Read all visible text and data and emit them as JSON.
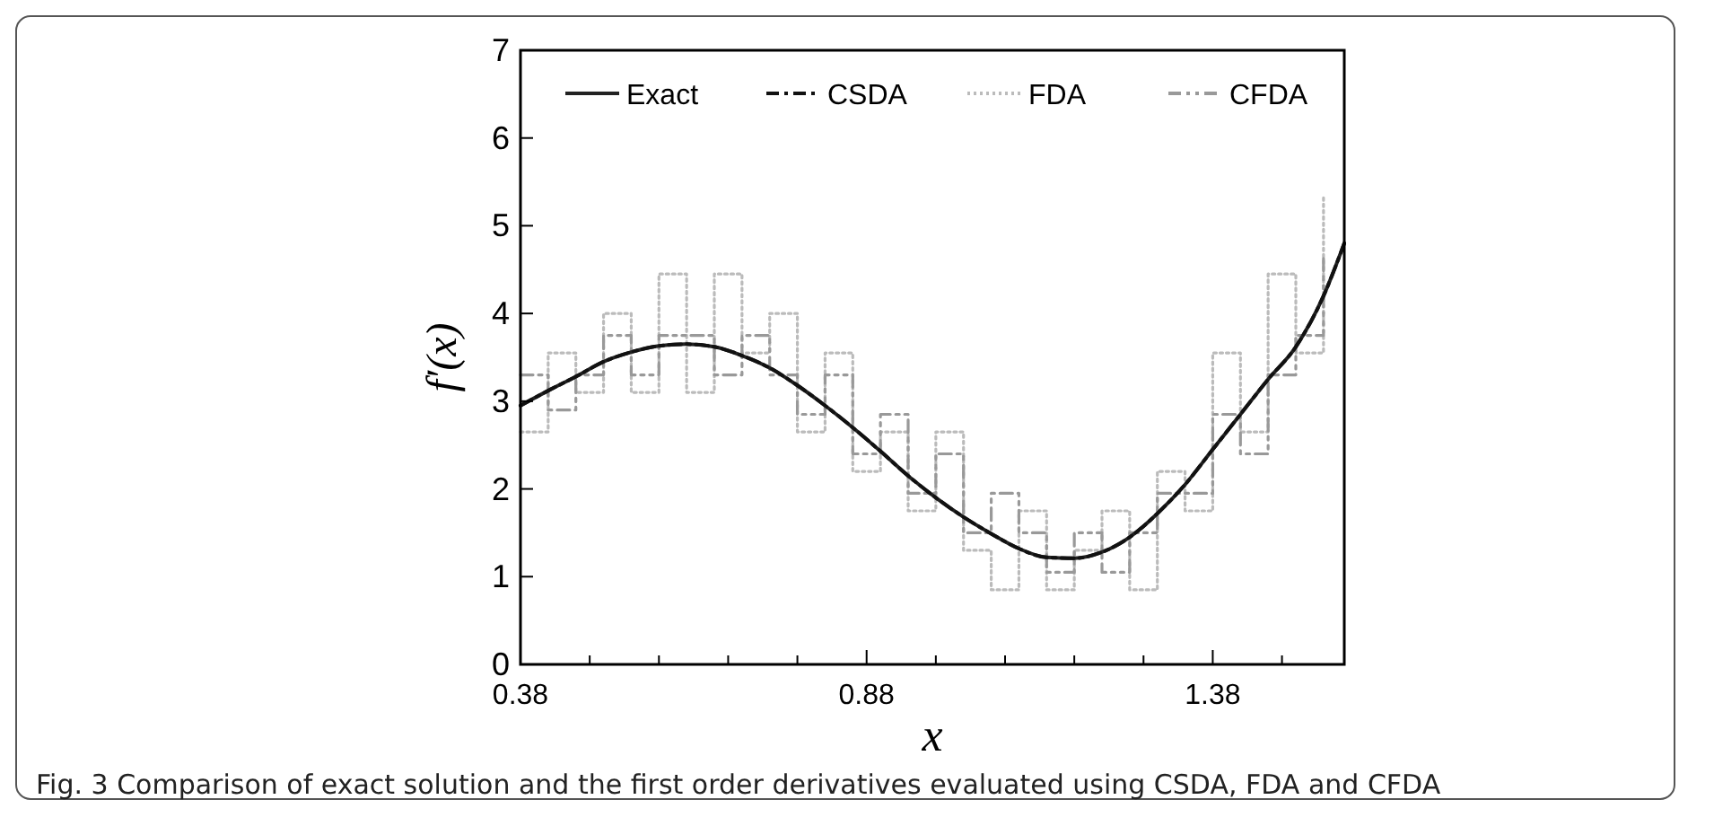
{
  "chart_data": {
    "type": "line",
    "xlabel": "x",
    "ylabel": "f′(x)",
    "annotations": [
      "Fig. 3  Comparison of exact solution and the first order derivatives evaluated using CSDA, FDA and CFDA"
    ],
    "x": [
      0.38,
      0.42,
      0.46,
      0.5,
      0.54,
      0.58,
      0.62,
      0.66,
      0.7,
      0.74,
      0.78,
      0.82,
      0.86,
      0.9,
      0.94,
      0.98,
      1.02,
      1.06,
      1.1,
      1.14,
      1.18,
      1.22,
      1.26,
      1.3,
      1.34,
      1.38,
      1.42,
      1.46,
      1.5,
      1.54,
      1.57
    ],
    "series": [
      {
        "name": "Exact",
        "color": "#222222",
        "line_style": "solid",
        "values": [
          2.95,
          3.12,
          3.28,
          3.45,
          3.56,
          3.63,
          3.65,
          3.62,
          3.52,
          3.38,
          3.18,
          2.95,
          2.7,
          2.43,
          2.15,
          1.9,
          1.68,
          1.49,
          1.32,
          1.22,
          1.21,
          1.28,
          1.45,
          1.72,
          2.05,
          2.45,
          2.85,
          3.25,
          3.62,
          4.2,
          4.8
        ]
      },
      {
        "name": "CSDA",
        "color": "#111111",
        "line_style": "dashdot",
        "values": [
          2.95,
          3.12,
          3.28,
          3.45,
          3.56,
          3.63,
          3.65,
          3.62,
          3.52,
          3.38,
          3.18,
          2.95,
          2.7,
          2.43,
          2.15,
          1.9,
          1.68,
          1.49,
          1.32,
          1.22,
          1.21,
          1.28,
          1.45,
          1.72,
          2.05,
          2.45,
          2.85,
          3.25,
          3.62,
          4.2,
          4.8
        ]
      },
      {
        "name": "FDA",
        "type": "step",
        "color": "#bbbbbb",
        "line_style": "dotted",
        "values": [
          2.65,
          3.55,
          3.1,
          4.0,
          3.1,
          4.45,
          3.1,
          4.45,
          3.55,
          4.0,
          2.65,
          3.55,
          2.2,
          2.65,
          1.75,
          2.65,
          1.3,
          0.85,
          1.75,
          0.85,
          1.3,
          1.75,
          0.85,
          2.2,
          1.75,
          3.55,
          2.65,
          4.45,
          3.55,
          5.35,
          null
        ]
      },
      {
        "name": "CFDA",
        "type": "step",
        "color": "#999999",
        "line_style": "dashdotdot",
        "values": [
          3.3,
          2.9,
          3.3,
          3.75,
          3.3,
          3.75,
          3.75,
          3.3,
          3.75,
          3.3,
          2.85,
          3.3,
          2.4,
          2.85,
          1.95,
          2.4,
          1.5,
          1.95,
          1.5,
          1.05,
          1.5,
          1.05,
          1.5,
          1.95,
          1.95,
          2.85,
          2.4,
          3.3,
          3.75,
          4.65,
          null
        ]
      }
    ],
    "xlim": [
      0.38,
      1.57
    ],
    "xticks": [
      0.38,
      {
        "value": 0.48,
        "label": null
      },
      {
        "value": 0.58,
        "label": null
      },
      {
        "value": 0.68,
        "label": null
      },
      {
        "value": 0.78,
        "label": null
      },
      0.88,
      {
        "value": 0.98,
        "label": null
      },
      {
        "value": 1.08,
        "label": null
      },
      {
        "value": 1.18,
        "label": null
      },
      {
        "value": 1.28,
        "label": null
      },
      1.38,
      {
        "value": 1.48,
        "label": null
      }
    ],
    "ylim": [
      0,
      7
    ],
    "yticks": [
      0,
      1,
      2,
      3,
      4,
      5,
      6,
      7
    ],
    "grid": false,
    "legend": "top",
    "marker": "none"
  }
}
